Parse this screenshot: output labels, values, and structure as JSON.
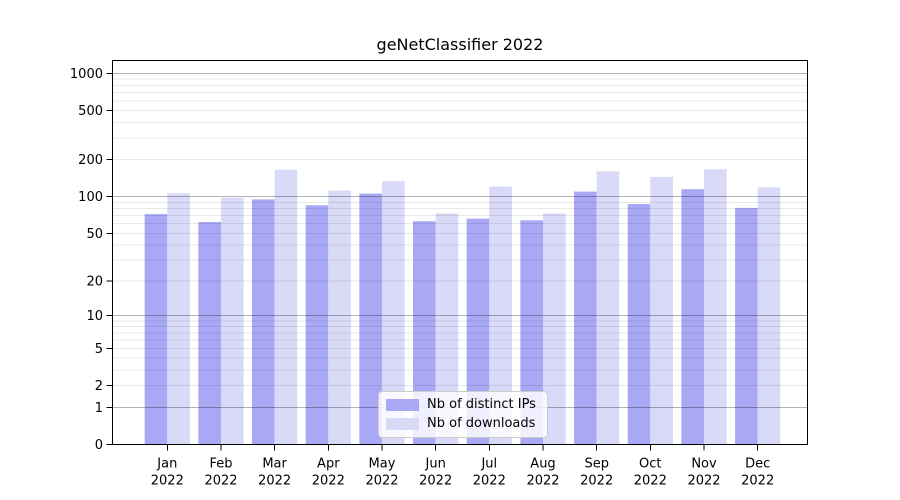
{
  "title": "geNetClassifier 2022",
  "chart_data": {
    "type": "bar",
    "title": "geNetClassifier 2022",
    "categories": [
      "Jan 2022",
      "Feb 2022",
      "Mar 2022",
      "Apr 2022",
      "May 2022",
      "Jun 2022",
      "Jul 2022",
      "Aug 2022",
      "Sep 2022",
      "Oct 2022",
      "Nov 2022",
      "Dec 2022"
    ],
    "x_tick_months": [
      "Jan",
      "Feb",
      "Mar",
      "Apr",
      "May",
      "Jun",
      "Jul",
      "Aug",
      "Sep",
      "Oct",
      "Nov",
      "Dec"
    ],
    "x_tick_year": "2022",
    "series": [
      {
        "name": "Nb of distinct IPs",
        "color": "#a8a8f5",
        "values": [
          72,
          62,
          95,
          85,
          106,
          63,
          66,
          64,
          110,
          87,
          115,
          81
        ]
      },
      {
        "name": "Nb of downloads",
        "color": "#d9d9f8",
        "values": [
          107,
          98,
          166,
          112,
          134,
          73,
          121,
          73,
          161,
          145,
          167,
          119
        ]
      }
    ],
    "yscale": "log10(value+1)",
    "ylim": [
      0,
      1000
    ],
    "yticks": [
      0,
      1,
      2,
      5,
      10,
      20,
      50,
      100,
      200,
      500,
      1000
    ],
    "major_gridlines": [
      1,
      10,
      100,
      1000
    ],
    "minor_gridlines": [
      2,
      3,
      4,
      5,
      6,
      7,
      8,
      9,
      20,
      30,
      40,
      50,
      60,
      70,
      80,
      90,
      200,
      300,
      400,
      500,
      600,
      700,
      800,
      900
    ],
    "grid": true,
    "legend_position": "lower center"
  }
}
